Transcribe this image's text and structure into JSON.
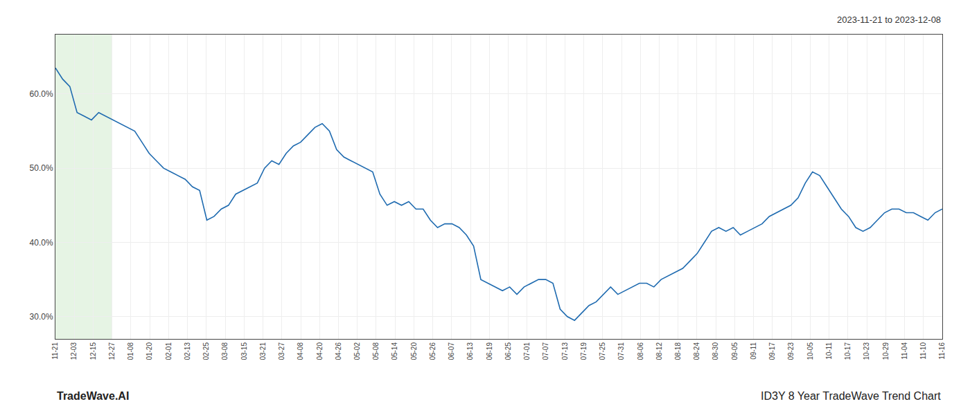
{
  "chart_data": {
    "type": "line",
    "annotations": [
      "2023-11-21 to 2023-12-08",
      "TradeWave.AI",
      "ID3Y 8 Year TradeWave Trend Chart"
    ],
    "color": "#1f6bb0",
    "grid": true,
    "x": [
      0,
      1,
      2,
      3,
      4,
      5,
      6,
      7,
      8,
      9,
      10,
      11,
      12,
      13,
      14,
      15,
      16,
      17,
      18,
      19,
      20,
      21,
      22,
      23,
      24,
      25,
      26,
      27,
      28,
      29,
      30,
      31,
      32,
      33,
      34,
      35,
      36,
      37,
      38,
      39,
      40,
      41,
      42,
      43,
      44,
      45,
      46,
      47,
      48,
      49,
      50,
      51,
      52,
      53,
      54,
      55,
      56,
      57,
      58,
      59,
      60,
      61,
      62,
      63,
      64,
      65,
      66,
      67,
      68,
      69,
      70,
      71,
      72,
      73,
      74,
      75,
      76,
      77,
      78,
      79,
      80,
      81,
      82,
      83,
      84,
      85,
      86,
      87,
      88,
      89,
      90,
      91,
      92,
      93,
      94,
      95,
      96,
      97,
      98,
      99,
      100,
      101,
      102,
      103,
      104,
      105,
      106,
      107,
      108,
      109,
      110,
      111,
      112,
      113,
      114,
      115,
      116,
      117,
      118,
      119,
      120,
      121,
      122,
      123
    ],
    "values": [
      0.635,
      0.62,
      0.61,
      0.575,
      0.57,
      0.565,
      0.575,
      0.57,
      0.565,
      0.56,
      0.555,
      0.55,
      0.535,
      0.52,
      0.51,
      0.5,
      0.495,
      0.49,
      0.485,
      0.475,
      0.47,
      0.43,
      0.435,
      0.445,
      0.45,
      0.465,
      0.47,
      0.475,
      0.48,
      0.5,
      0.51,
      0.505,
      0.52,
      0.53,
      0.535,
      0.545,
      0.555,
      0.56,
      0.55,
      0.525,
      0.515,
      0.51,
      0.505,
      0.5,
      0.495,
      0.465,
      0.45,
      0.455,
      0.45,
      0.455,
      0.445,
      0.445,
      0.43,
      0.42,
      0.425,
      0.425,
      0.42,
      0.41,
      0.395,
      0.35,
      0.345,
      0.34,
      0.335,
      0.34,
      0.33,
      0.34,
      0.345,
      0.35,
      0.35,
      0.345,
      0.31,
      0.3,
      0.295,
      0.305,
      0.315,
      0.32,
      0.33,
      0.34,
      0.33,
      0.335,
      0.34,
      0.345,
      0.345,
      0.34,
      0.35,
      0.355,
      0.36,
      0.365,
      0.375,
      0.385,
      0.4,
      0.415,
      0.42,
      0.415,
      0.42,
      0.41,
      0.415,
      0.42,
      0.425,
      0.435,
      0.44,
      0.445,
      0.45,
      0.46,
      0.48,
      0.495,
      0.49,
      0.475,
      0.46,
      0.445,
      0.435,
      0.42,
      0.415,
      0.42,
      0.43,
      0.44,
      0.445,
      0.445,
      0.44,
      0.44,
      0.435,
      0.43,
      0.44,
      0.445
    ],
    "xlim": [
      0,
      123
    ],
    "xticks": [
      {
        "value": 0,
        "label": "11-21"
      },
      {
        "value": 2.617021,
        "label": "12-03"
      },
      {
        "value": 5.234043,
        "label": "12-15"
      },
      {
        "value": 7.851064,
        "label": "12-27"
      },
      {
        "value": 10.468085,
        "label": "01-08"
      },
      {
        "value": 13.085106,
        "label": "01-20"
      },
      {
        "value": 15.702128,
        "label": "02-01"
      },
      {
        "value": 18.319149,
        "label": "02-13"
      },
      {
        "value": 20.93617,
        "label": "02-25"
      },
      {
        "value": 23.553191,
        "label": "03-08"
      },
      {
        "value": 26.170213,
        "label": "03-15"
      },
      {
        "value": 28.787234,
        "label": "03-21"
      },
      {
        "value": 31.404255,
        "label": "03-27"
      },
      {
        "value": 34.021277,
        "label": "04-08"
      },
      {
        "value": 36.638298,
        "label": "04-20"
      },
      {
        "value": 39.255319,
        "label": "04-26"
      },
      {
        "value": 41.87234,
        "label": "05-02"
      },
      {
        "value": 44.489362,
        "label": "05-08"
      },
      {
        "value": 47.106383,
        "label": "05-14"
      },
      {
        "value": 49.723404,
        "label": "05-20"
      },
      {
        "value": 52.340426,
        "label": "05-26"
      },
      {
        "value": 54.957447,
        "label": "06-07"
      },
      {
        "value": 57.574468,
        "label": "06-13"
      },
      {
        "value": 60.191489,
        "label": "06-19"
      },
      {
        "value": 62.808511,
        "label": "06-25"
      },
      {
        "value": 65.425532,
        "label": "07-01"
      },
      {
        "value": 68.042553,
        "label": "07-07"
      },
      {
        "value": 70.659574,
        "label": "07-13"
      },
      {
        "value": 73.276596,
        "label": "07-19"
      },
      {
        "value": 75.893617,
        "label": "07-25"
      },
      {
        "value": 78.510638,
        "label": "07-31"
      },
      {
        "value": 81.12766,
        "label": "08-06"
      },
      {
        "value": 83.744681,
        "label": "08-12"
      },
      {
        "value": 86.361702,
        "label": "08-18"
      },
      {
        "value": 88.978723,
        "label": "08-24"
      },
      {
        "value": 91.595745,
        "label": "08-30"
      },
      {
        "value": 94.212766,
        "label": "09-05"
      },
      {
        "value": 96.829787,
        "label": "09-11"
      },
      {
        "value": 99.446809,
        "label": "09-17"
      },
      {
        "value": 102.06383,
        "label": "09-23"
      },
      {
        "value": 104.680851,
        "label": "10-05"
      },
      {
        "value": 107.297872,
        "label": "10-11"
      },
      {
        "value": 109.914894,
        "label": "10-17"
      },
      {
        "value": 112.531915,
        "label": "10-23"
      },
      {
        "value": 115.148936,
        "label": "10-29"
      },
      {
        "value": 117.765957,
        "label": "11-04"
      },
      {
        "value": 120.382979,
        "label": "11-10"
      },
      {
        "value": 123,
        "label": "11-16"
      }
    ],
    "ylim": [
      0.27,
      0.68
    ],
    "yticks": [
      {
        "value": 0.3,
        "label": "30.0%"
      },
      {
        "value": 0.4,
        "label": "40.0%"
      },
      {
        "value": 0.5,
        "label": "50.0%"
      },
      {
        "value": 0.6,
        "label": "60.0%"
      }
    ],
    "highlight": {
      "x": [
        0,
        7.851064
      ],
      "color": "#d6ecd2"
    }
  }
}
